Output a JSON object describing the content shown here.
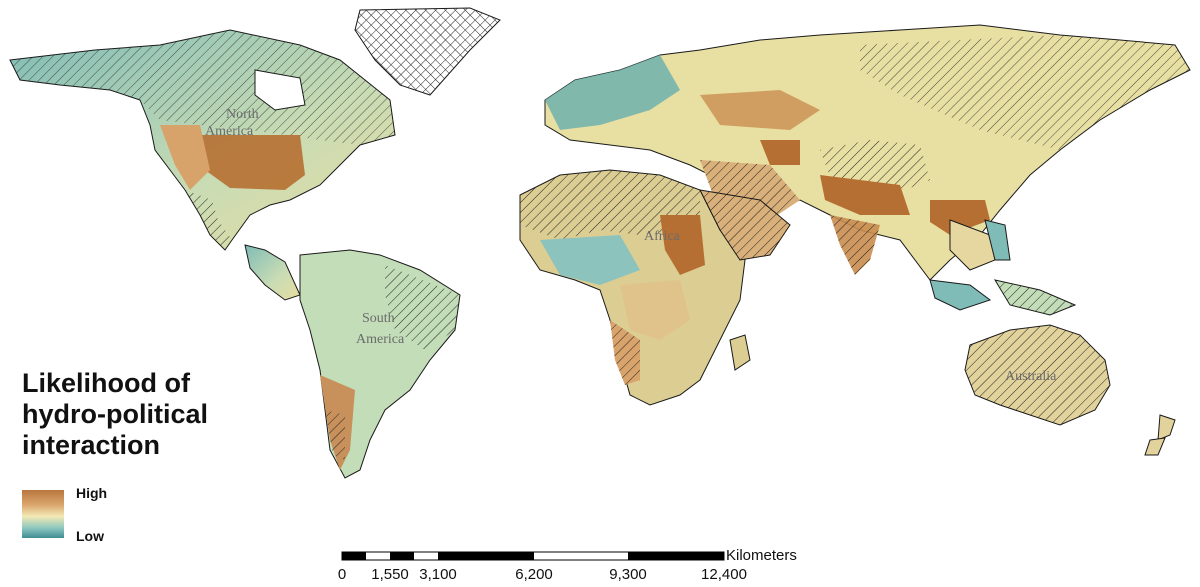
{
  "legend": {
    "title": "Likelihood of hydro-political interaction",
    "high_label": "High",
    "low_label": "Low",
    "colors": {
      "high": "#b9773e",
      "mid": "#f3e9b5",
      "low": "#3f8c92"
    }
  },
  "scale_bar": {
    "unit": "Kilometers",
    "ticks": [
      "0",
      "1,550",
      "3,100",
      "6,200",
      "9,300",
      "12,400"
    ]
  },
  "region_labels": {
    "north_america": "North America",
    "south_america": "South America",
    "africa": "Africa",
    "australia": "Australia"
  },
  "colors": {
    "land_base": "#d8d39a",
    "land_teal": "#7fbcb7",
    "land_brown": "#b66f32",
    "hatch": "#222222",
    "border": "#1a1a1a"
  }
}
